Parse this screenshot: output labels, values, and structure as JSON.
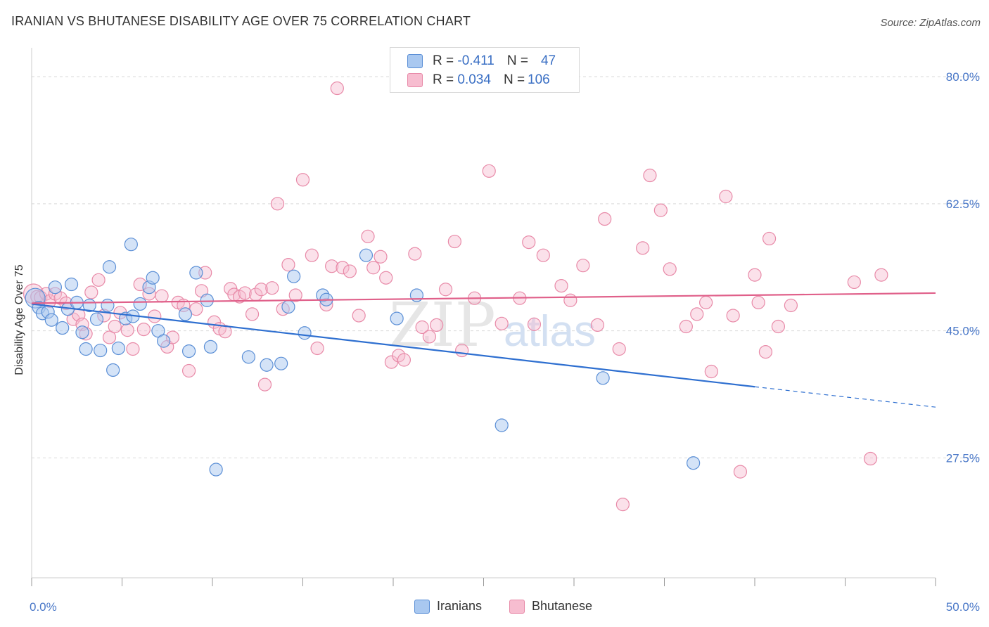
{
  "title": "IRANIAN VS BHUTANESE DISABILITY AGE OVER 75 CORRELATION CHART",
  "source": "Source: ZipAtlas.com",
  "watermark": "ZIPatlas",
  "legend": {
    "rows": [
      {
        "r_label": "R =",
        "r_value": "-0.411",
        "n_label": "N =",
        "n_value": "47"
      },
      {
        "r_label": "R =",
        "r_value": "0.034",
        "n_label": "N =",
        "n_value": "106"
      }
    ]
  },
  "bottom_legend": [
    "Iranians",
    "Bhutanese"
  ],
  "colors": {
    "iranians_fill": "#a9c8f0",
    "iranians_stroke": "#5b8fd6",
    "iranians_line": "#2e6fd0",
    "bhutanese_fill": "#f7bdd0",
    "bhutanese_stroke": "#e88aa8",
    "bhutanese_line": "#e0608a",
    "axis_label": "#4a78c8",
    "grid": "#d9d9d9"
  },
  "chart_data": {
    "type": "scatter",
    "title": "IRANIAN VS BHUTANESE DISABILITY AGE OVER 75 CORRELATION CHART",
    "xlabel": "",
    "ylabel": "Disability Age Over 75",
    "xlim": [
      0,
      50
    ],
    "ylim": [
      11,
      83
    ],
    "x_tick_labels": [
      "0.0%",
      "50.0%"
    ],
    "y_ticks": [
      27.5,
      45.0,
      62.5,
      80.0
    ],
    "y_tick_labels": [
      "27.5%",
      "45.0%",
      "62.5%",
      "80.0%"
    ],
    "grid": true,
    "legend_position": "top-center",
    "series": [
      {
        "name": "Iranians",
        "r": -0.411,
        "n": 47,
        "trend": {
          "x0": 0,
          "y0": 48.7,
          "x1": 40,
          "y1": 37.3,
          "dashed_to_x": 50,
          "dashed_to_y": 34.5
        },
        "points": [
          [
            0.2,
            49.5
          ],
          [
            0.4,
            48.2
          ],
          [
            0.6,
            47.4
          ],
          [
            0.9,
            47.6
          ],
          [
            1.1,
            46.5
          ],
          [
            1.3,
            51.0
          ],
          [
            1.7,
            45.4
          ],
          [
            2.0,
            48.0
          ],
          [
            2.2,
            51.4
          ],
          [
            2.5,
            48.9
          ],
          [
            2.8,
            44.8
          ],
          [
            3.0,
            42.5
          ],
          [
            3.2,
            48.5
          ],
          [
            3.6,
            46.6
          ],
          [
            3.8,
            42.3
          ],
          [
            4.2,
            48.5
          ],
          [
            4.3,
            53.8
          ],
          [
            4.5,
            39.6
          ],
          [
            4.8,
            42.6
          ],
          [
            5.2,
            46.7
          ],
          [
            5.5,
            56.9
          ],
          [
            5.6,
            47.0
          ],
          [
            6.0,
            48.7
          ],
          [
            6.5,
            51.0
          ],
          [
            6.7,
            52.3
          ],
          [
            7.0,
            45.0
          ],
          [
            7.3,
            43.6
          ],
          [
            8.5,
            47.3
          ],
          [
            8.7,
            42.2
          ],
          [
            9.1,
            53.0
          ],
          [
            9.7,
            49.2
          ],
          [
            9.9,
            42.8
          ],
          [
            10.2,
            25.9
          ],
          [
            12.0,
            41.4
          ],
          [
            13.0,
            40.3
          ],
          [
            13.8,
            40.5
          ],
          [
            14.2,
            48.3
          ],
          [
            14.5,
            52.5
          ],
          [
            15.1,
            44.7
          ],
          [
            16.1,
            49.9
          ],
          [
            16.3,
            49.3
          ],
          [
            18.5,
            55.4
          ],
          [
            20.2,
            46.7
          ],
          [
            21.3,
            49.9
          ],
          [
            26.0,
            32.0
          ],
          [
            31.6,
            38.5
          ],
          [
            36.6,
            26.8
          ]
        ]
      },
      {
        "name": "Bhutanese",
        "r": 0.034,
        "n": 106,
        "trend": {
          "x0": 0,
          "y0": 48.8,
          "x1": 50,
          "y1": 50.2
        },
        "points": [
          [
            0.1,
            50.1
          ],
          [
            0.3,
            49.7
          ],
          [
            0.5,
            49.6
          ],
          [
            0.8,
            50.1
          ],
          [
            1.0,
            49.1
          ],
          [
            1.3,
            50.1
          ],
          [
            1.6,
            49.5
          ],
          [
            1.9,
            48.8
          ],
          [
            2.3,
            46.6
          ],
          [
            2.6,
            47.2
          ],
          [
            2.8,
            45.9
          ],
          [
            3.0,
            44.6
          ],
          [
            3.3,
            50.3
          ],
          [
            3.7,
            52.0
          ],
          [
            4.0,
            47.1
          ],
          [
            4.3,
            44.1
          ],
          [
            4.6,
            45.6
          ],
          [
            4.9,
            47.5
          ],
          [
            5.3,
            45.1
          ],
          [
            5.6,
            42.5
          ],
          [
            6.0,
            51.4
          ],
          [
            6.2,
            45.2
          ],
          [
            6.5,
            50.1
          ],
          [
            6.8,
            47.0
          ],
          [
            7.2,
            49.8
          ],
          [
            7.5,
            42.8
          ],
          [
            7.8,
            44.1
          ],
          [
            8.1,
            48.9
          ],
          [
            8.4,
            48.5
          ],
          [
            8.7,
            39.5
          ],
          [
            9.1,
            48.0
          ],
          [
            9.4,
            50.5
          ],
          [
            9.6,
            53.0
          ],
          [
            10.1,
            46.2
          ],
          [
            10.4,
            45.3
          ],
          [
            10.7,
            44.9
          ],
          [
            11.0,
            50.8
          ],
          [
            11.2,
            50.0
          ],
          [
            11.5,
            49.7
          ],
          [
            11.8,
            50.2
          ],
          [
            12.2,
            47.3
          ],
          [
            12.4,
            50.0
          ],
          [
            12.7,
            50.7
          ],
          [
            12.9,
            37.6
          ],
          [
            13.3,
            50.9
          ],
          [
            13.6,
            62.5
          ],
          [
            13.9,
            48.0
          ],
          [
            14.2,
            54.1
          ],
          [
            14.6,
            49.9
          ],
          [
            15.0,
            65.8
          ],
          [
            15.5,
            55.4
          ],
          [
            15.8,
            42.6
          ],
          [
            16.3,
            48.6
          ],
          [
            16.6,
            53.9
          ],
          [
            16.9,
            78.4
          ],
          [
            17.2,
            53.7
          ],
          [
            17.6,
            53.2
          ],
          [
            18.1,
            47.1
          ],
          [
            18.6,
            58.0
          ],
          [
            18.9,
            53.7
          ],
          [
            19.3,
            55.2
          ],
          [
            19.6,
            52.3
          ],
          [
            19.9,
            40.7
          ],
          [
            20.3,
            41.6
          ],
          [
            20.6,
            41.0
          ],
          [
            21.2,
            55.6
          ],
          [
            21.6,
            45.5
          ],
          [
            22.0,
            44.2
          ],
          [
            22.4,
            45.8
          ],
          [
            22.9,
            50.7
          ],
          [
            23.4,
            57.3
          ],
          [
            23.8,
            42.3
          ],
          [
            24.5,
            49.5
          ],
          [
            25.3,
            67.0
          ],
          [
            26.0,
            46.0
          ],
          [
            27.0,
            49.5
          ],
          [
            27.5,
            57.2
          ],
          [
            27.8,
            45.9
          ],
          [
            28.3,
            55.4
          ],
          [
            29.3,
            51.2
          ],
          [
            29.8,
            49.2
          ],
          [
            30.5,
            54.0
          ],
          [
            31.3,
            45.8
          ],
          [
            31.7,
            60.4
          ],
          [
            32.5,
            42.5
          ],
          [
            32.7,
            21.1
          ],
          [
            33.8,
            56.4
          ],
          [
            34.2,
            66.4
          ],
          [
            34.8,
            61.6
          ],
          [
            35.3,
            53.5
          ],
          [
            36.2,
            45.6
          ],
          [
            36.8,
            47.3
          ],
          [
            37.3,
            48.9
          ],
          [
            37.6,
            39.4
          ],
          [
            38.4,
            63.5
          ],
          [
            38.8,
            47.1
          ],
          [
            39.2,
            25.6
          ],
          [
            40.0,
            52.7
          ],
          [
            40.2,
            48.9
          ],
          [
            40.6,
            42.1
          ],
          [
            40.8,
            57.7
          ],
          [
            41.3,
            45.6
          ],
          [
            42.0,
            48.5
          ],
          [
            45.5,
            51.7
          ],
          [
            46.4,
            27.4
          ],
          [
            47.0,
            52.7
          ]
        ]
      }
    ]
  }
}
